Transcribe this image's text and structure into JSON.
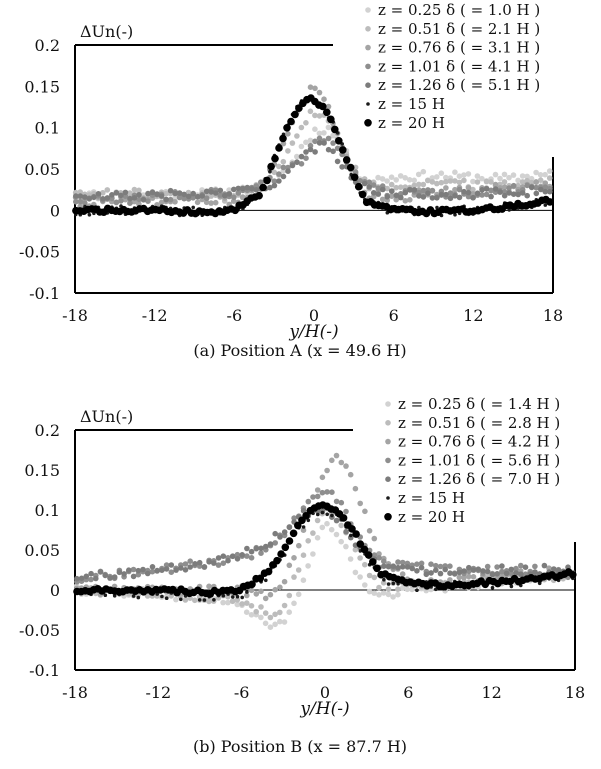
{
  "chart_data": [
    {
      "type": "scatter",
      "ylabel": "ΔUn(-)",
      "xlabel": "y/H(-)",
      "caption": "(a) Position A (x = 49.6 H)",
      "xlim": [
        -18,
        18
      ],
      "ylim": [
        -0.1,
        0.2
      ],
      "xticks": [
        "-18",
        "-12",
        "-6",
        "0",
        "6",
        "12",
        "18"
      ],
      "yticks": [
        "0.2",
        "0.15",
        "0.1",
        "0.05",
        "0",
        "-0.05",
        "-0.1"
      ],
      "grid": false,
      "legend_position": "top-right",
      "series": [
        {
          "name": "z = 0.25 δ ( = 1.0 H )",
          "color": "#d2d2d2",
          "marker": "small",
          "x": [
            -18,
            -12,
            -8,
            -6,
            -4,
            -2,
            -1,
            0,
            1,
            2,
            3,
            4,
            6,
            9,
            12,
            15,
            18
          ],
          "y": [
            0.018,
            0.02,
            0.02,
            0.022,
            0.028,
            0.05,
            0.075,
            0.095,
            0.1,
            0.08,
            0.05,
            0.035,
            0.04,
            0.042,
            0.04,
            0.038,
            0.048
          ]
        },
        {
          "name": "z = 0.51 δ ( = 2.1 H )",
          "color": "#bcbcbc",
          "marker": "small",
          "x": [
            -18,
            -12,
            -8,
            -6,
            -4,
            -2,
            -1,
            0,
            1,
            2,
            3,
            4,
            6,
            9,
            12,
            15,
            18
          ],
          "y": [
            0.02,
            0.02,
            0.018,
            0.015,
            0.03,
            0.07,
            0.1,
            0.12,
            0.11,
            0.08,
            0.05,
            0.03,
            0.03,
            0.035,
            0.03,
            0.032,
            0.04
          ]
        },
        {
          "name": "z = 0.76 δ ( = 3.1 H )",
          "color": "#a4a4a4",
          "marker": "small",
          "x": [
            -18,
            -12,
            -8,
            -6,
            -4,
            -2,
            -1,
            0,
            1,
            2,
            3,
            4,
            6,
            9,
            12,
            15,
            18
          ],
          "y": [
            0.01,
            0.012,
            0.012,
            0.012,
            0.03,
            0.09,
            0.13,
            0.15,
            0.13,
            0.085,
            0.045,
            0.02,
            0.015,
            0.022,
            0.025,
            0.028,
            0.03
          ]
        },
        {
          "name": "z = 1.01 δ ( = 4.1 H )",
          "color": "#8e8e8e",
          "marker": "small",
          "x": [
            -18,
            -12,
            -8,
            -6,
            -4,
            -2,
            -1,
            0,
            1,
            2,
            3,
            4,
            6,
            9,
            12,
            15,
            18
          ],
          "y": [
            0.012,
            0.015,
            0.02,
            0.02,
            0.03,
            0.05,
            0.06,
            0.08,
            0.09,
            0.075,
            0.05,
            0.03,
            0.02,
            0.02,
            0.02,
            0.025,
            0.028
          ]
        },
        {
          "name": "z = 1.26 δ ( = 5.1 H )",
          "color": "#7c7c7c",
          "marker": "small",
          "x": [
            -18,
            -12,
            -8,
            -6,
            -4,
            -2,
            -1,
            0,
            1,
            2,
            3,
            4,
            6,
            9,
            12,
            15,
            18
          ],
          "y": [
            0.015,
            0.018,
            0.02,
            0.022,
            0.025,
            0.045,
            0.06,
            0.075,
            0.078,
            0.06,
            0.04,
            0.025,
            0.02,
            0.02,
            0.02,
            0.022,
            0.025
          ]
        },
        {
          "name": "z = 15 H",
          "color": "#1a1a1a",
          "marker": "tiny",
          "x": [
            -18,
            -12,
            -8,
            -6,
            -4,
            -3,
            -2,
            -1,
            0,
            1,
            2,
            3,
            4,
            6,
            9,
            12,
            15,
            18
          ],
          "y": [
            0,
            0.0,
            -0.002,
            0,
            0.02,
            0.06,
            0.1,
            0.13,
            0.135,
            0.12,
            0.08,
            0.04,
            0.01,
            0.0,
            -0.002,
            0.0,
            0.005,
            0.012
          ]
        },
        {
          "name": "z = 20 H",
          "color": "#000000",
          "marker": "large",
          "x": [
            -18,
            -12,
            -8,
            -6,
            -4,
            -3,
            -2,
            -1,
            0,
            1,
            2,
            3,
            4,
            6,
            9,
            12,
            15,
            18
          ],
          "y": [
            0,
            0.0,
            -0.003,
            0,
            0.02,
            0.06,
            0.1,
            0.13,
            0.135,
            0.12,
            0.08,
            0.04,
            0.01,
            0.0,
            -0.002,
            0.0,
            0.005,
            0.012
          ]
        }
      ]
    },
    {
      "type": "scatter",
      "ylabel": "ΔUn(-)",
      "xlabel": "y/H(-)",
      "caption": "(b) Position B (x = 87.7 H)",
      "xlim": [
        -18,
        18
      ],
      "ylim": [
        -0.1,
        0.2
      ],
      "xticks": [
        "-18",
        "-12",
        "-6",
        "0",
        "6",
        "12",
        "18"
      ],
      "yticks": [
        "0.2",
        "0.15",
        "0.1",
        "0.05",
        "0",
        "-0.05",
        "-0.1"
      ],
      "grid": false,
      "legend_position": "top-right",
      "series": [
        {
          "name": "z = 0.25 δ ( = 1.4 H )",
          "color": "#d2d2d2",
          "marker": "small",
          "x": [
            -18,
            -12,
            -8,
            -6,
            -4,
            -3,
            -2,
            -1,
            0,
            1,
            2,
            3,
            4,
            6,
            9,
            12,
            15,
            18
          ],
          "y": [
            0.0,
            -0.005,
            -0.01,
            -0.02,
            -0.045,
            -0.04,
            -0.01,
            0.04,
            0.085,
            0.07,
            0.03,
            0.0,
            -0.01,
            0.0,
            0.005,
            0.01,
            0.015,
            0.02
          ]
        },
        {
          "name": "z = 0.51 δ ( = 2.8 H )",
          "color": "#bcbcbc",
          "marker": "small",
          "x": [
            -18,
            -12,
            -8,
            -6,
            -4,
            -3,
            -2,
            -1,
            0,
            1,
            2,
            3,
            4,
            6,
            9,
            12,
            15,
            18
          ],
          "y": [
            0.0,
            -0.005,
            -0.01,
            -0.015,
            -0.03,
            -0.02,
            0.02,
            0.07,
            0.1,
            0.09,
            0.06,
            0.025,
            0.005,
            0.005,
            0.008,
            0.012,
            0.015,
            0.02
          ]
        },
        {
          "name": "z = 0.76 δ ( = 4.2 H )",
          "color": "#a4a4a4",
          "marker": "small",
          "x": [
            -18,
            -12,
            -8,
            -6,
            -4,
            -3,
            -2,
            -1,
            0,
            1,
            2,
            3,
            4,
            6,
            9,
            12,
            15,
            18
          ],
          "y": [
            0.0,
            0.0,
            0.0,
            0.0,
            -0.01,
            0.01,
            0.05,
            0.1,
            0.15,
            0.17,
            0.14,
            0.09,
            0.04,
            0.01,
            0.01,
            0.015,
            0.02,
            0.025
          ]
        },
        {
          "name": "z = 1.01 δ ( = 5.6 H )",
          "color": "#8e8e8e",
          "marker": "small",
          "x": [
            -18,
            -12,
            -8,
            -6,
            -4,
            -3,
            -2,
            -1,
            0,
            1,
            2,
            3,
            4,
            6,
            9,
            12,
            15,
            18
          ],
          "y": [
            0.015,
            0.025,
            0.035,
            0.04,
            0.055,
            0.07,
            0.09,
            0.11,
            0.125,
            0.11,
            0.08,
            0.05,
            0.035,
            0.03,
            0.025,
            0.025,
            0.025,
            0.02
          ]
        },
        {
          "name": "z = 1.26 δ ( = 7.0 H )",
          "color": "#7c7c7c",
          "marker": "small",
          "x": [
            -18,
            -12,
            -8,
            -6,
            -4,
            -3,
            -2,
            -1,
            0,
            1,
            2,
            3,
            4,
            6,
            9,
            12,
            15,
            18
          ],
          "y": [
            0.015,
            0.025,
            0.035,
            0.045,
            0.06,
            0.075,
            0.09,
            0.1,
            0.1,
            0.09,
            0.065,
            0.045,
            0.03,
            0.025,
            0.025,
            0.025,
            0.025,
            0.025
          ]
        },
        {
          "name": "z = 15 H",
          "color": "#1a1a1a",
          "marker": "tiny",
          "x": [
            -18,
            -12,
            -8,
            -6,
            -4,
            -3,
            -2,
            -1,
            0,
            1,
            2,
            3,
            4,
            6,
            9,
            12,
            15,
            18
          ],
          "y": [
            -0.005,
            -0.005,
            -0.008,
            -0.005,
            0.02,
            0.045,
            0.075,
            0.095,
            0.1,
            0.09,
            0.07,
            0.04,
            0.015,
            0.005,
            0.005,
            0.008,
            0.012,
            0.02
          ]
        },
        {
          "name": "z = 20 H",
          "color": "#000000",
          "marker": "large",
          "x": [
            -18,
            -12,
            -8,
            -6,
            -4,
            -3,
            -2,
            -1,
            0,
            1,
            2,
            3,
            4,
            6,
            9,
            12,
            15,
            18
          ],
          "y": [
            0.0,
            0.0,
            -0.003,
            0.0,
            0.025,
            0.05,
            0.08,
            0.1,
            0.105,
            0.095,
            0.075,
            0.045,
            0.02,
            0.008,
            0.006,
            0.01,
            0.013,
            0.022
          ]
        }
      ]
    }
  ]
}
